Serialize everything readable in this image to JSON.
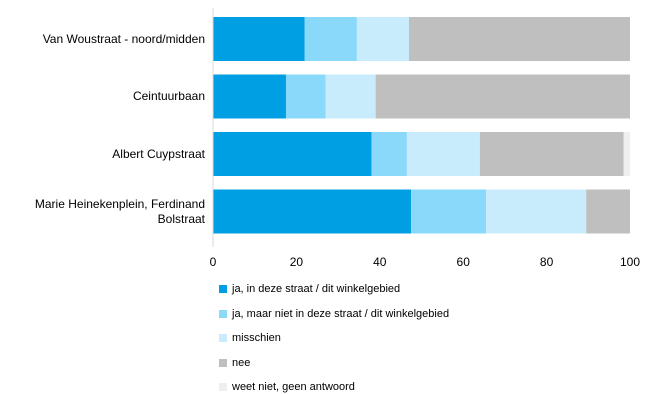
{
  "chart_data": {
    "type": "bar",
    "orientation": "horizontal",
    "stacked": true,
    "title": "",
    "xlabel": "",
    "ylabel": "",
    "xlim": [
      0,
      100
    ],
    "x_ticks": [
      "0",
      "20",
      "40",
      "60",
      "80",
      "100"
    ],
    "grid": false,
    "legend_position": "bottom",
    "categories": [
      "Van Woustraat - noord/midden",
      "Ceintuurbaan",
      "Albert Cuypstraat",
      "Marie Heinekenplein, Ferdinand Bolstraat"
    ],
    "series": [
      {
        "name": "ja, in deze straat / dit winkelgebied",
        "color": "#009fe3",
        "values": [
          22,
          17.5,
          38,
          47.5
        ]
      },
      {
        "name": "ja, maar niet in deze straat / dit winkelgebied",
        "color": "#8ad8fa",
        "values": [
          12.5,
          9.5,
          8.5,
          18
        ]
      },
      {
        "name": "misschien",
        "color": "#c9ecfc",
        "values": [
          12.5,
          12,
          17.5,
          24
        ]
      },
      {
        "name": "nee",
        "color": "#bfbfbf",
        "values": [
          53,
          61,
          34.5,
          10.5
        ]
      },
      {
        "name": "weet niet, geen antwoord",
        "color": "#efefef",
        "values": [
          0,
          0,
          1.5,
          0
        ]
      }
    ]
  }
}
